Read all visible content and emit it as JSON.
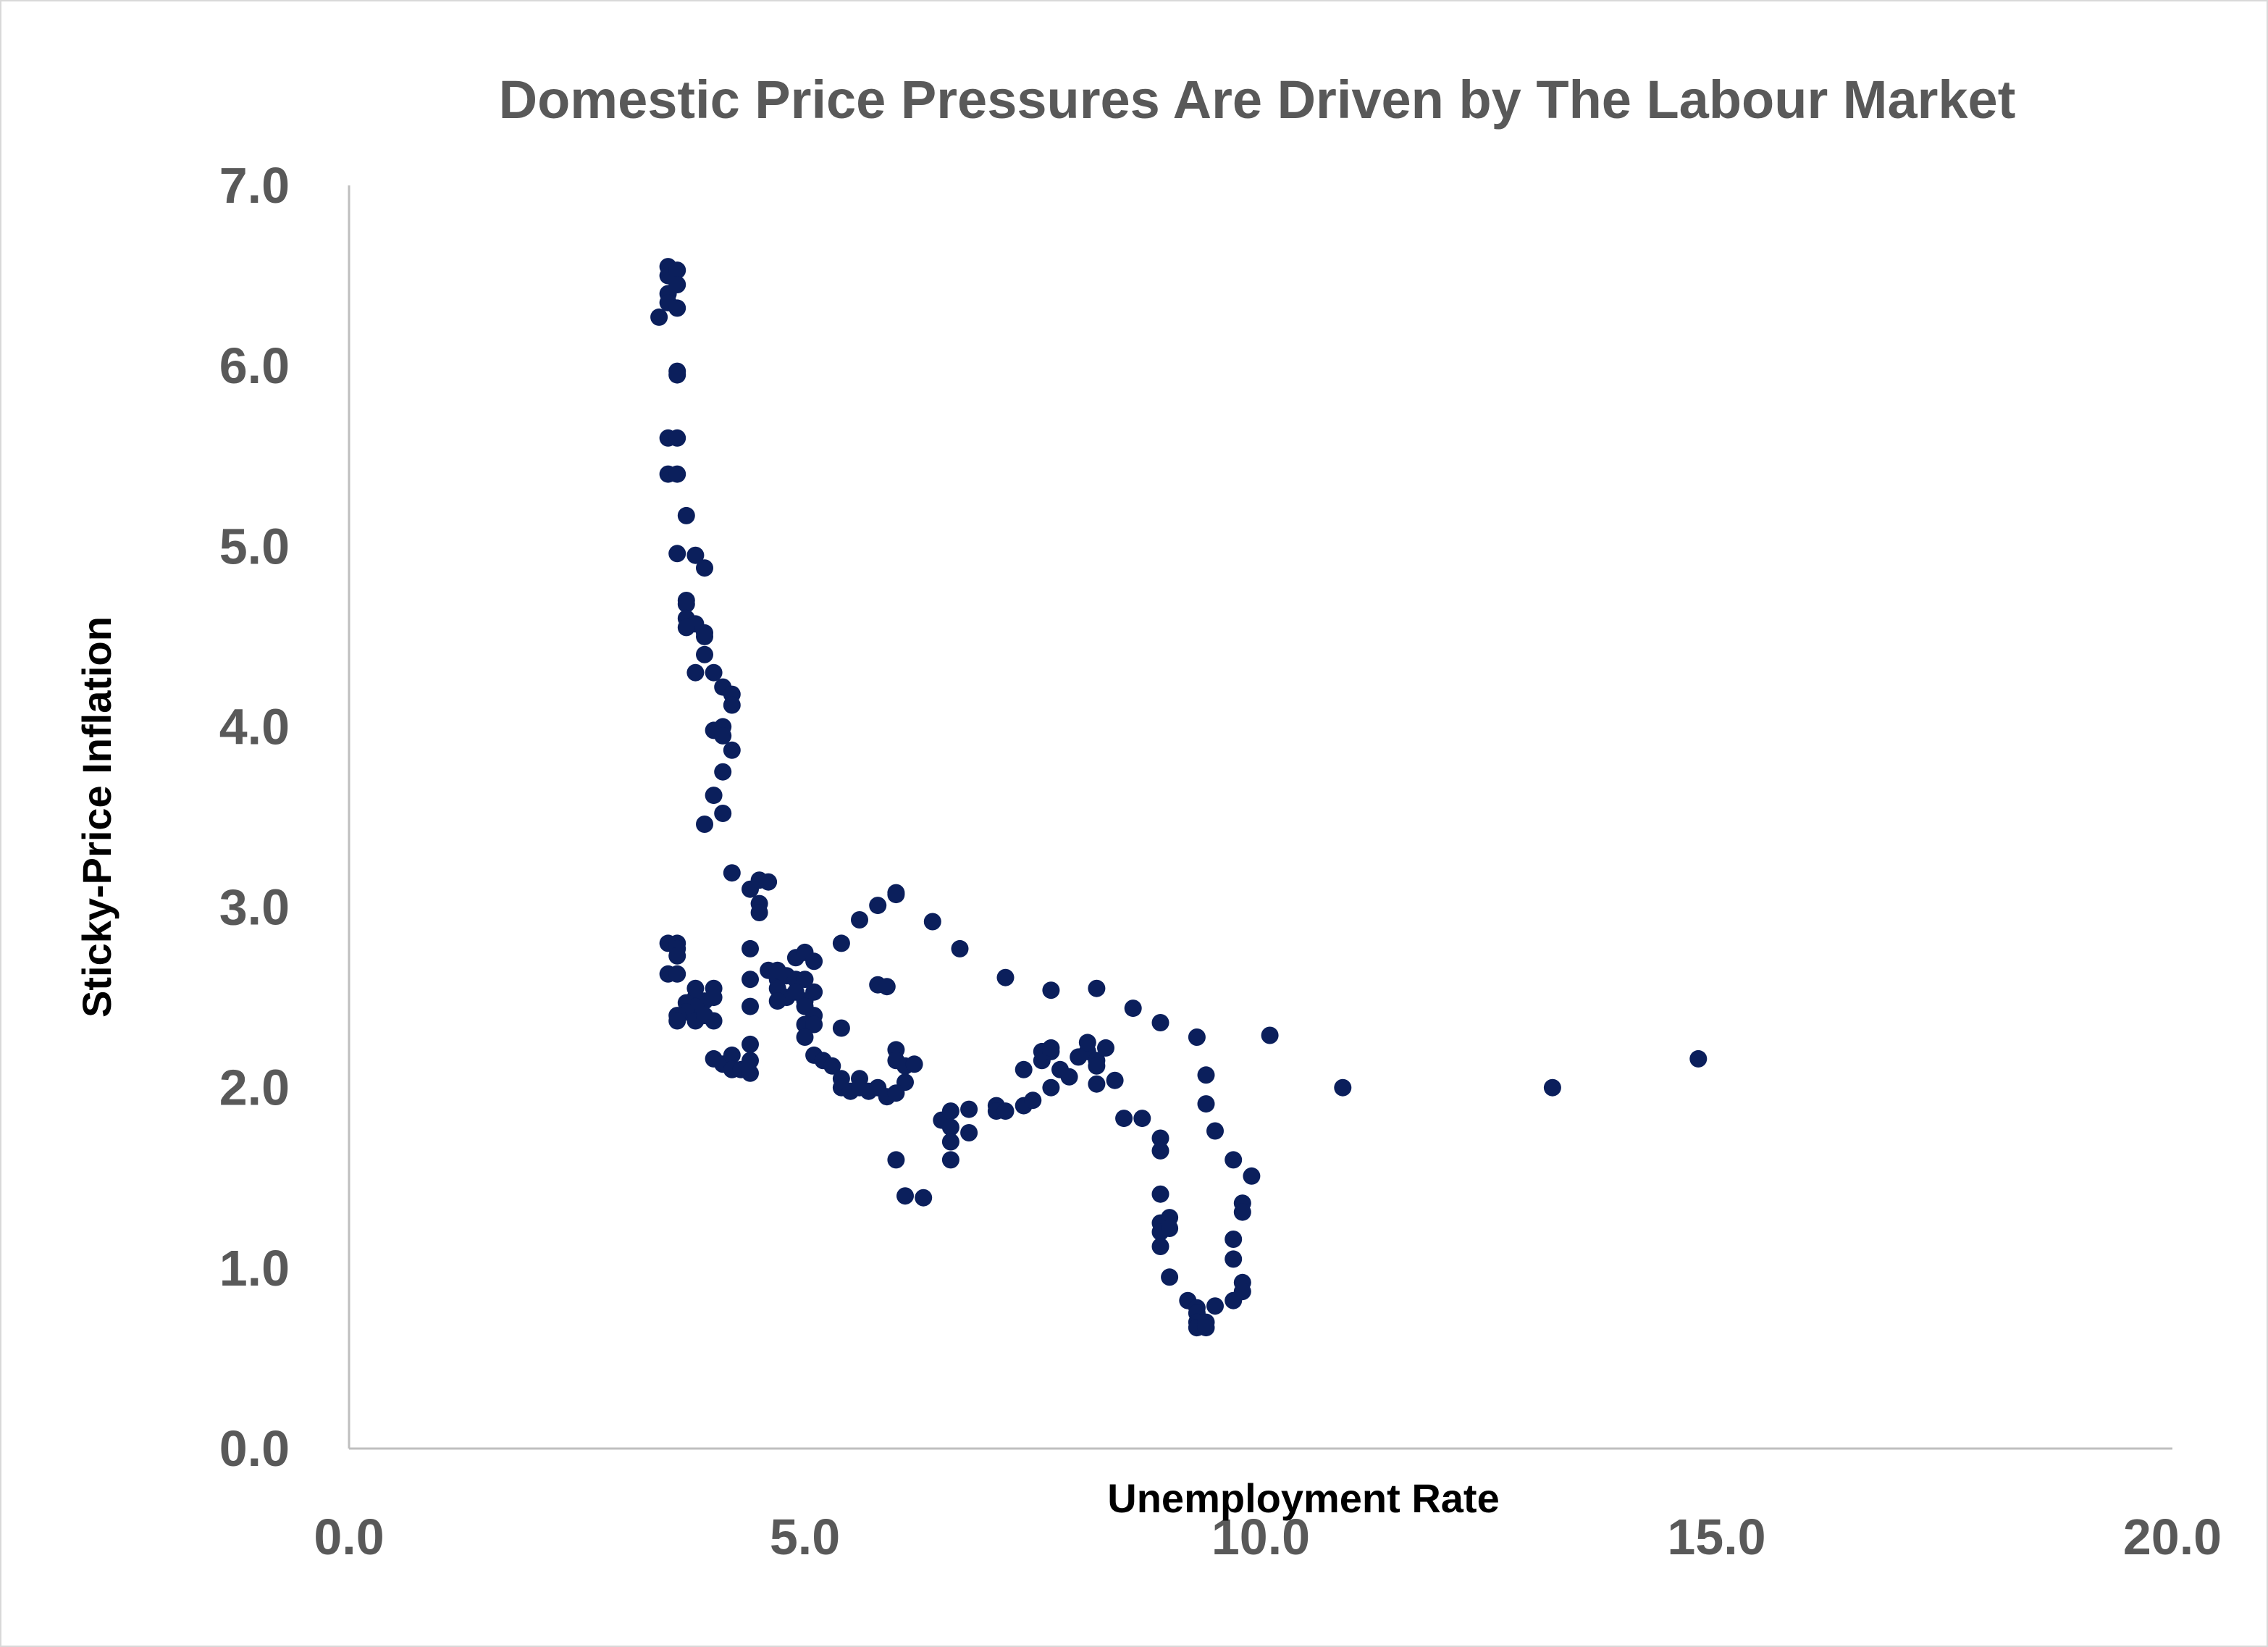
{
  "chart_data": {
    "type": "scatter",
    "title": "Domestic Price Pressures Are Driven by The Labour Market",
    "xlabel": "Unemployment Rate",
    "ylabel": "Sticky-Price Inflation",
    "xlim": [
      0,
      20
    ],
    "ylim": [
      0,
      7
    ],
    "xticks": [
      "0.0",
      "5.0",
      "10.0",
      "15.0",
      "20.0"
    ],
    "yticks": [
      "0.0",
      "1.0",
      "2.0",
      "3.0",
      "4.0",
      "5.0",
      "6.0",
      "7.0"
    ],
    "grid": false,
    "legend": "none",
    "marker_color": "#0b1f5c",
    "axis_color": "#bfbfbf",
    "points": [
      [
        3.4,
        6.27
      ],
      [
        3.5,
        6.55
      ],
      [
        3.5,
        6.5
      ],
      [
        3.5,
        6.4
      ],
      [
        3.6,
        6.53
      ],
      [
        3.6,
        6.45
      ],
      [
        3.5,
        6.35
      ],
      [
        3.6,
        6.32
      ],
      [
        3.6,
        5.97
      ],
      [
        3.6,
        5.95
      ],
      [
        3.5,
        5.6
      ],
      [
        3.6,
        5.6
      ],
      [
        3.5,
        5.4
      ],
      [
        3.6,
        5.4
      ],
      [
        3.7,
        5.17
      ],
      [
        3.6,
        4.96
      ],
      [
        3.8,
        4.95
      ],
      [
        3.9,
        4.88
      ],
      [
        3.7,
        4.7
      ],
      [
        3.7,
        4.68
      ],
      [
        3.7,
        4.6
      ],
      [
        3.8,
        4.57
      ],
      [
        3.7,
        4.55
      ],
      [
        3.9,
        4.52
      ],
      [
        3.9,
        4.5
      ],
      [
        3.9,
        4.4
      ],
      [
        3.8,
        4.3
      ],
      [
        4.0,
        4.3
      ],
      [
        4.1,
        4.22
      ],
      [
        4.2,
        4.18
      ],
      [
        4.2,
        4.12
      ],
      [
        4.1,
        4.0
      ],
      [
        4.0,
        3.98
      ],
      [
        4.1,
        3.95
      ],
      [
        4.2,
        3.87
      ],
      [
        4.1,
        3.75
      ],
      [
        4.0,
        3.62
      ],
      [
        4.1,
        3.52
      ],
      [
        3.9,
        3.46
      ],
      [
        4.2,
        3.19
      ],
      [
        4.4,
        3.1
      ],
      [
        4.5,
        3.15
      ],
      [
        4.6,
        3.14
      ],
      [
        4.5,
        3.02
      ],
      [
        4.5,
        2.97
      ],
      [
        3.5,
        2.8
      ],
      [
        3.6,
        2.8
      ],
      [
        3.6,
        2.77
      ],
      [
        3.6,
        2.73
      ],
      [
        3.5,
        2.63
      ],
      [
        3.6,
        2.63
      ],
      [
        3.8,
        2.55
      ],
      [
        4.0,
        2.55
      ],
      [
        3.8,
        2.5
      ],
      [
        3.9,
        2.48
      ],
      [
        4.0,
        2.5
      ],
      [
        3.7,
        2.47
      ],
      [
        3.8,
        2.45
      ],
      [
        3.7,
        2.42
      ],
      [
        3.6,
        2.4
      ],
      [
        3.6,
        2.37
      ],
      [
        3.8,
        2.37
      ],
      [
        4.0,
        2.37
      ],
      [
        3.9,
        2.4
      ],
      [
        4.4,
        2.77
      ],
      [
        4.4,
        2.6
      ],
      [
        4.4,
        2.45
      ],
      [
        4.4,
        2.24
      ],
      [
        4.0,
        2.16
      ],
      [
        4.1,
        2.13
      ],
      [
        4.2,
        2.18
      ],
      [
        4.2,
        2.1
      ],
      [
        4.3,
        2.1
      ],
      [
        4.4,
        2.15
      ],
      [
        4.4,
        2.08
      ],
      [
        4.6,
        2.65
      ],
      [
        4.7,
        2.6
      ],
      [
        4.7,
        2.65
      ],
      [
        4.8,
        2.62
      ],
      [
        4.7,
        2.55
      ],
      [
        4.8,
        2.5
      ],
      [
        4.7,
        2.48
      ],
      [
        4.9,
        2.72
      ],
      [
        5.0,
        2.75
      ],
      [
        5.1,
        2.7
      ],
      [
        4.9,
        2.6
      ],
      [
        5.0,
        2.6
      ],
      [
        4.9,
        2.53
      ],
      [
        5.1,
        2.53
      ],
      [
        5.0,
        2.48
      ],
      [
        5.0,
        2.45
      ],
      [
        5.1,
        2.4
      ],
      [
        5.0,
        2.35
      ],
      [
        5.1,
        2.35
      ],
      [
        5.0,
        2.28
      ],
      [
        5.1,
        2.18
      ],
      [
        5.2,
        2.15
      ],
      [
        5.3,
        2.12
      ],
      [
        5.4,
        2.8
      ],
      [
        5.4,
        2.33
      ],
      [
        5.4,
        2.05
      ],
      [
        5.4,
        2.0
      ],
      [
        5.5,
        1.98
      ],
      [
        5.6,
        2.05
      ],
      [
        5.6,
        2.0
      ],
      [
        5.7,
        1.98
      ],
      [
        5.8,
        2.0
      ],
      [
        5.9,
        1.95
      ],
      [
        5.6,
        2.93
      ],
      [
        5.8,
        3.01
      ],
      [
        6.0,
        3.07
      ],
      [
        6.0,
        3.08
      ],
      [
        5.8,
        2.57
      ],
      [
        5.9,
        2.56
      ],
      [
        6.0,
        2.21
      ],
      [
        6.0,
        2.15
      ],
      [
        6.1,
        2.12
      ],
      [
        6.2,
        2.13
      ],
      [
        6.1,
        2.03
      ],
      [
        6.0,
        1.97
      ],
      [
        6.0,
        1.6
      ],
      [
        6.1,
        1.4
      ],
      [
        6.3,
        1.39
      ],
      [
        6.4,
        2.92
      ],
      [
        6.7,
        2.77
      ],
      [
        6.5,
        1.82
      ],
      [
        6.6,
        1.87
      ],
      [
        6.6,
        1.78
      ],
      [
        6.6,
        1.7
      ],
      [
        6.6,
        1.6
      ],
      [
        6.8,
        1.88
      ],
      [
        6.8,
        1.75
      ],
      [
        7.1,
        1.9
      ],
      [
        7.1,
        1.87
      ],
      [
        7.2,
        1.87
      ],
      [
        7.2,
        2.61
      ],
      [
        7.4,
        2.1
      ],
      [
        7.4,
        1.9
      ],
      [
        7.5,
        1.93
      ],
      [
        7.6,
        2.2
      ],
      [
        7.6,
        2.15
      ],
      [
        7.7,
        2.2
      ],
      [
        7.7,
        2.22
      ],
      [
        7.7,
        2.0
      ],
      [
        7.8,
        2.1
      ],
      [
        7.9,
        2.06
      ],
      [
        7.7,
        2.54
      ],
      [
        8.0,
        2.17
      ],
      [
        8.1,
        2.2
      ],
      [
        8.1,
        2.25
      ],
      [
        8.2,
        2.15
      ],
      [
        8.2,
        2.12
      ],
      [
        8.2,
        2.02
      ],
      [
        8.3,
        2.22
      ],
      [
        8.2,
        2.55
      ],
      [
        8.4,
        2.04
      ],
      [
        8.5,
        1.83
      ],
      [
        8.6,
        2.44
      ],
      [
        8.7,
        1.83
      ],
      [
        8.9,
        2.36
      ],
      [
        8.9,
        1.72
      ],
      [
        8.9,
        1.65
      ],
      [
        8.9,
        1.41
      ],
      [
        8.9,
        1.25
      ],
      [
        9.0,
        1.28
      ],
      [
        8.9,
        1.2
      ],
      [
        9.0,
        1.22
      ],
      [
        8.9,
        1.12
      ],
      [
        9.0,
        0.95
      ],
      [
        9.3,
        2.28
      ],
      [
        9.4,
        2.07
      ],
      [
        9.4,
        1.91
      ],
      [
        9.5,
        1.76
      ],
      [
        9.7,
        1.6
      ],
      [
        9.9,
        1.51
      ],
      [
        9.2,
        0.82
      ],
      [
        9.3,
        0.78
      ],
      [
        9.3,
        0.75
      ],
      [
        9.3,
        0.7
      ],
      [
        9.3,
        0.67
      ],
      [
        9.4,
        0.7
      ],
      [
        9.4,
        0.67
      ],
      [
        9.5,
        0.79
      ],
      [
        9.7,
        0.82
      ],
      [
        9.7,
        1.05
      ],
      [
        9.7,
        1.16
      ],
      [
        9.8,
        1.36
      ],
      [
        9.8,
        1.31
      ],
      [
        9.8,
        0.92
      ],
      [
        9.8,
        0.87
      ],
      [
        10.1,
        2.29
      ],
      [
        10.9,
        2.0
      ],
      [
        13.2,
        2.0
      ],
      [
        14.8,
        2.16
      ]
    ]
  }
}
